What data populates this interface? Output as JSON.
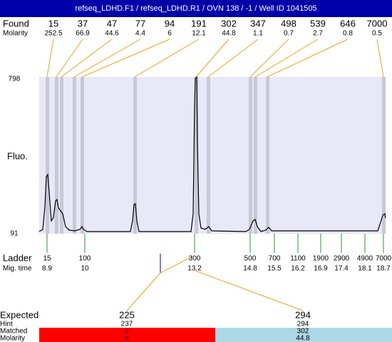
{
  "title": "refseq_LDHD.F1 / refseq_LDHD.R1 / OVN 138 / -1 / Well ID 1041505",
  "found": {
    "label": "Found",
    "sizes": [
      15,
      37,
      47,
      77,
      94,
      191,
      302,
      347,
      498,
      539,
      646,
      7000
    ]
  },
  "molarity": {
    "label": "Molarity",
    "values": [
      252.5,
      66.9,
      44.6,
      4.4,
      6,
      12.1,
      44.8,
      1.1,
      0.7,
      2.7,
      0.8,
      0.5
    ]
  },
  "y_axis": {
    "label": "Fluo.",
    "max": 798,
    "min": 91
  },
  "ladder": {
    "label": "Ladder",
    "sizes": [
      15,
      100,
      300,
      500,
      700,
      1100,
      1900,
      2900,
      4900,
      7000
    ]
  },
  "mig_time": {
    "label": "Mig. time",
    "values": [
      8.9,
      10,
      13.2,
      14.8,
      15.5,
      16.2,
      16.9,
      17.4,
      18.1,
      18.7
    ]
  },
  "expected": {
    "label": "Expected",
    "values": [
      225,
      294
    ]
  },
  "hint": {
    "label": "Hint",
    "values": [
      237,
      294
    ]
  },
  "matched": {
    "label": "Matched",
    "values": [
      "x",
      302
    ]
  },
  "match_molarity": {
    "label": "Molarity",
    "values": [
      "x",
      44.8
    ]
  }
}
